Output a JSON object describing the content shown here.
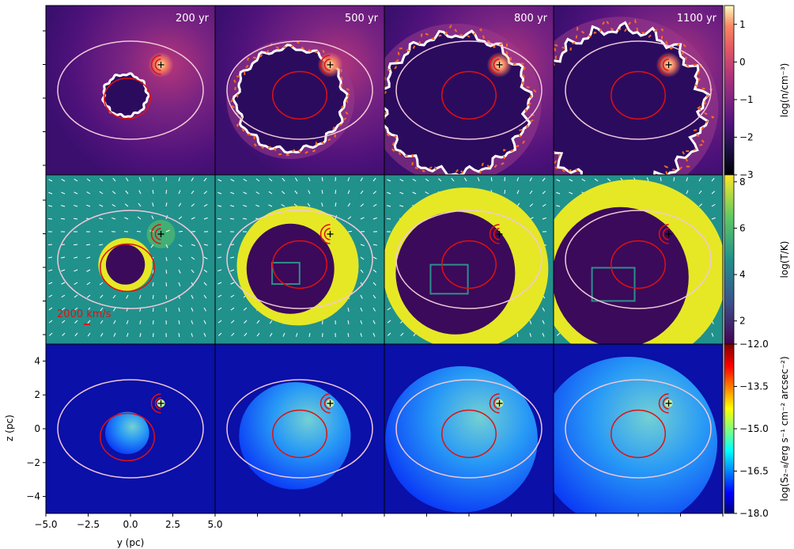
{
  "chart_data": {
    "type": "heatmap",
    "layout": "3x4 panel grid",
    "epochs": [
      "200 yr",
      "500 yr",
      "800 yr",
      "1100 yr"
    ],
    "xlabel": "y (pc)",
    "ylabel": "z (pc)",
    "xlim": [
      -5.0,
      5.0
    ],
    "ylim": [
      -5.0,
      5.0
    ],
    "xticks": [
      "−5.0",
      "−2.5",
      "0.0",
      "2.5",
      "5.0"
    ],
    "yticks": [
      "4",
      "2",
      "0",
      "−2",
      "−4"
    ],
    "star_position": [
      1.8,
      1.5
    ],
    "rows": [
      {
        "quantity": "density",
        "colorbar_label": "log(n/cm⁻³)",
        "colorbar_range": [
          -3,
          1.5
        ],
        "colorbar_ticks": [
          "1",
          "0",
          "−1",
          "−2",
          "−3"
        ],
        "colormap": "magma",
        "remnant_radius_pc": [
          1.3,
          3.2,
          4.3,
          4.9
        ]
      },
      {
        "quantity": "temperature",
        "colorbar_label": "log(T/K)",
        "colorbar_range": [
          1,
          8.3
        ],
        "colorbar_ticks": [
          "8",
          "6",
          "4",
          "2"
        ],
        "colormap": "viridis",
        "velocity_scale_label": "2000 km/s",
        "remnant_radius_pc": [
          1.6,
          3.6,
          4.9,
          5.6
        ]
      },
      {
        "quantity": "X-ray surface brightness 2-8 keV",
        "colorbar_label": "log(S₂₋₈/erg s⁻¹ cm⁻² arcsec⁻²)",
        "colorbar_range": [
          -18.0,
          -12.0
        ],
        "colorbar_ticks": [
          "−12.0",
          "−13.5",
          "−15.0",
          "−16.5",
          "−18.0"
        ],
        "colormap": "jet",
        "remnant_radius_pc": [
          1.3,
          3.3,
          4.5,
          5.3
        ]
      }
    ],
    "overlays": {
      "outer_ellipse": {
        "center": [
          0,
          0
        ],
        "semi_axes_pc": [
          4.3,
          2.9
        ],
        "color": "#f2c8d8"
      },
      "inner_ellipse": {
        "center": [
          0,
          0
        ],
        "semi_axes_pc": [
          1.6,
          1.4
        ],
        "color": "#e01010"
      }
    }
  }
}
